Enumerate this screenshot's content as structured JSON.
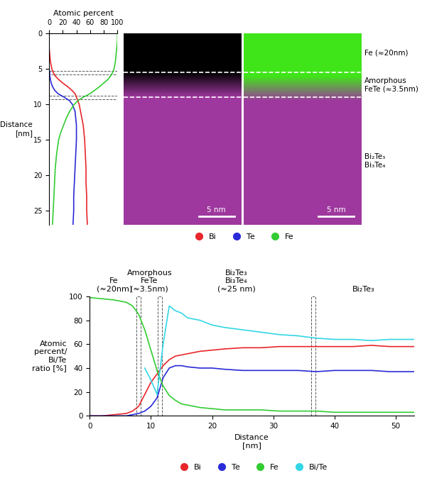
{
  "chart_data": [
    {
      "type": "line",
      "orientation": "horizontal",
      "x_label": "Atomic percent",
      "y_label": "Distance\n[nm]",
      "x": [
        0,
        1,
        2,
        3,
        4,
        5,
        5.5,
        6,
        6.5,
        7,
        7.5,
        8,
        8.5,
        9,
        9.5,
        10,
        11,
        12,
        13,
        14,
        15,
        17,
        19,
        21,
        23,
        25,
        27
      ],
      "series": [
        {
          "name": "Bi",
          "color": "#e8262b",
          "values": [
            0,
            0,
            0,
            1,
            2,
            4,
            6,
            9,
            14,
            20,
            27,
            33,
            38,
            40,
            42,
            44,
            46,
            48,
            50,
            51,
            52,
            53,
            54,
            54,
            55,
            55,
            56
          ]
        },
        {
          "name": "Te",
          "color": "#2a2ad8",
          "values": [
            0,
            0,
            0,
            0,
            0,
            0,
            1,
            1,
            2,
            3,
            5,
            8,
            13,
            22,
            30,
            34,
            38,
            39,
            40,
            40,
            40,
            39,
            38,
            37,
            36,
            36,
            35
          ]
        },
        {
          "name": "Fe",
          "color": "#33cc33",
          "values": [
            100,
            100,
            99,
            98,
            97,
            95,
            93,
            90,
            86,
            80,
            74,
            67,
            60,
            50,
            42,
            37,
            30,
            25,
            21,
            17,
            14,
            11,
            9,
            8,
            7,
            6,
            5
          ]
        }
      ],
      "xlim": [
        0,
        100
      ],
      "xticks": [
        0,
        20,
        40,
        60,
        80,
        100
      ],
      "ylim": [
        27,
        0
      ],
      "yticks": [
        0,
        5,
        10,
        15,
        20,
        25
      ],
      "boundaries": [
        5.5,
        9.0
      ],
      "region_labels": [
        "Fe (≈20nm)",
        "Amorphous\nFeTe (≈3.5nm)",
        "Bi₂Te₃\nBi₃Te₄"
      ],
      "scale_bar": {
        "length": 5,
        "label": "5 nm"
      },
      "legend": "upper center"
    },
    {
      "type": "line",
      "x_label": "Distance\n[nm]",
      "y_label": "Atomic\npercent/\nBi/Te\nratio [%]",
      "x": [
        0,
        2,
        4,
        6,
        7,
        8,
        9,
        10,
        11,
        12,
        13,
        14,
        15,
        16,
        18,
        20,
        22,
        25,
        28,
        31,
        34,
        37,
        40,
        43,
        46,
        49,
        52,
        53
      ],
      "series": [
        {
          "name": "Bi",
          "color": "#e8262b",
          "values": [
            0,
            0,
            1,
            2,
            4,
            8,
            18,
            28,
            35,
            42,
            47,
            50,
            51,
            52,
            54,
            55,
            56,
            57,
            57,
            58,
            58,
            58,
            58,
            58,
            59,
            58,
            58,
            58
          ]
        },
        {
          "name": "Te",
          "color": "#2a2ad8",
          "values": [
            0,
            0,
            0,
            0,
            1,
            2,
            4,
            8,
            15,
            32,
            40,
            42,
            42,
            41,
            40,
            40,
            39,
            38,
            38,
            38,
            38,
            37,
            38,
            38,
            38,
            37,
            37,
            37
          ]
        },
        {
          "name": "Fe",
          "color": "#33cc33",
          "values": [
            99,
            98,
            97,
            95,
            92,
            85,
            72,
            55,
            38,
            25,
            17,
            13,
            10,
            9,
            7,
            6,
            5,
            5,
            5,
            4,
            4,
            4,
            3,
            3,
            3,
            3,
            3,
            3
          ]
        },
        {
          "name": "Bi/Te",
          "color": "#33d6e6",
          "values": [
            null,
            null,
            null,
            null,
            null,
            null,
            40,
            30,
            18,
            60,
            92,
            88,
            86,
            82,
            80,
            76,
            74,
            72,
            70,
            68,
            67,
            65,
            64,
            64,
            63,
            64,
            64,
            64
          ]
        }
      ],
      "xlim": [
        0,
        53
      ],
      "xticks": [
        0,
        10,
        20,
        30,
        40,
        50
      ],
      "ylim": [
        0,
        100
      ],
      "yticks": [
        0,
        20,
        40,
        60,
        80,
        100
      ],
      "boundaries": [
        8,
        11.5,
        36.5
      ],
      "region_labels": [
        "Fe\n(≈20nm)",
        "Amorphous\nFeTe\n(≈3.5nm)",
        "Bi₂Te₃\nBi₃Te₄\n(≈25 nm)",
        "Bi₂Te₃"
      ],
      "legend": "lower center"
    }
  ]
}
